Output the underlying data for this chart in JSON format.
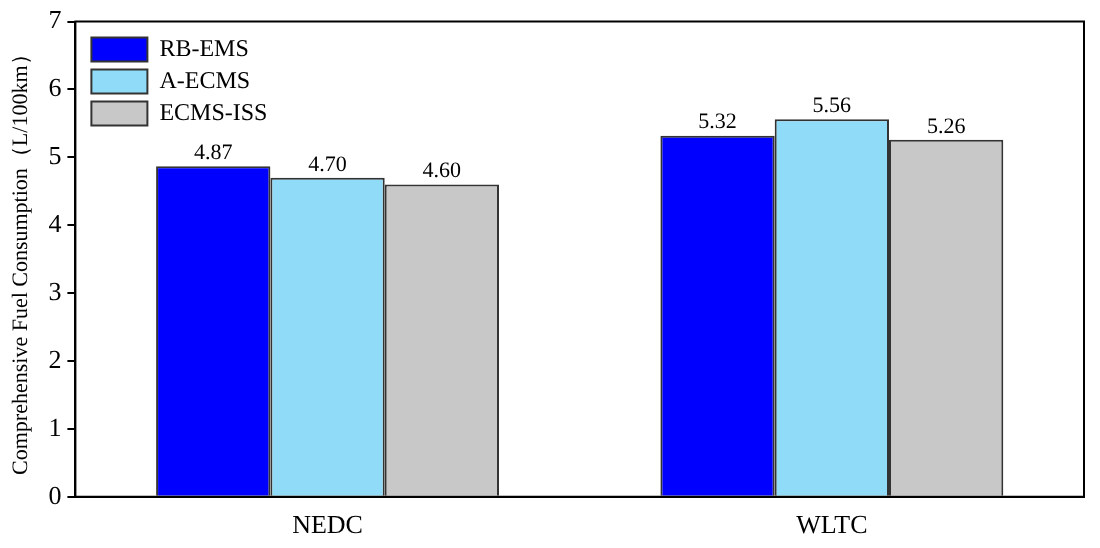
{
  "chart_data": {
    "type": "bar",
    "ylabel": "Comprehensive Fuel Consumption（L/100km）",
    "categories": [
      "NEDC",
      "WLTC"
    ],
    "series": [
      {
        "name": "RB-EMS",
        "color": "#0000ff",
        "values": [
          4.87,
          5.32
        ],
        "value_labels": [
          "4.87",
          "5.32"
        ]
      },
      {
        "name": "A-ECMS",
        "color": "#90dcf8",
        "values": [
          4.7,
          5.56
        ],
        "value_labels": [
          "4.70",
          "5.56"
        ]
      },
      {
        "name": "ECMS-ISS",
        "color": "#c8c8c8",
        "values": [
          4.6,
          5.26
        ],
        "value_labels": [
          "4.60",
          "5.26"
        ]
      }
    ],
    "ylim": [
      0,
      7
    ],
    "yticks": [
      0,
      1,
      2,
      3,
      4,
      5,
      6,
      7
    ],
    "legend": "top left",
    "grid": false
  }
}
